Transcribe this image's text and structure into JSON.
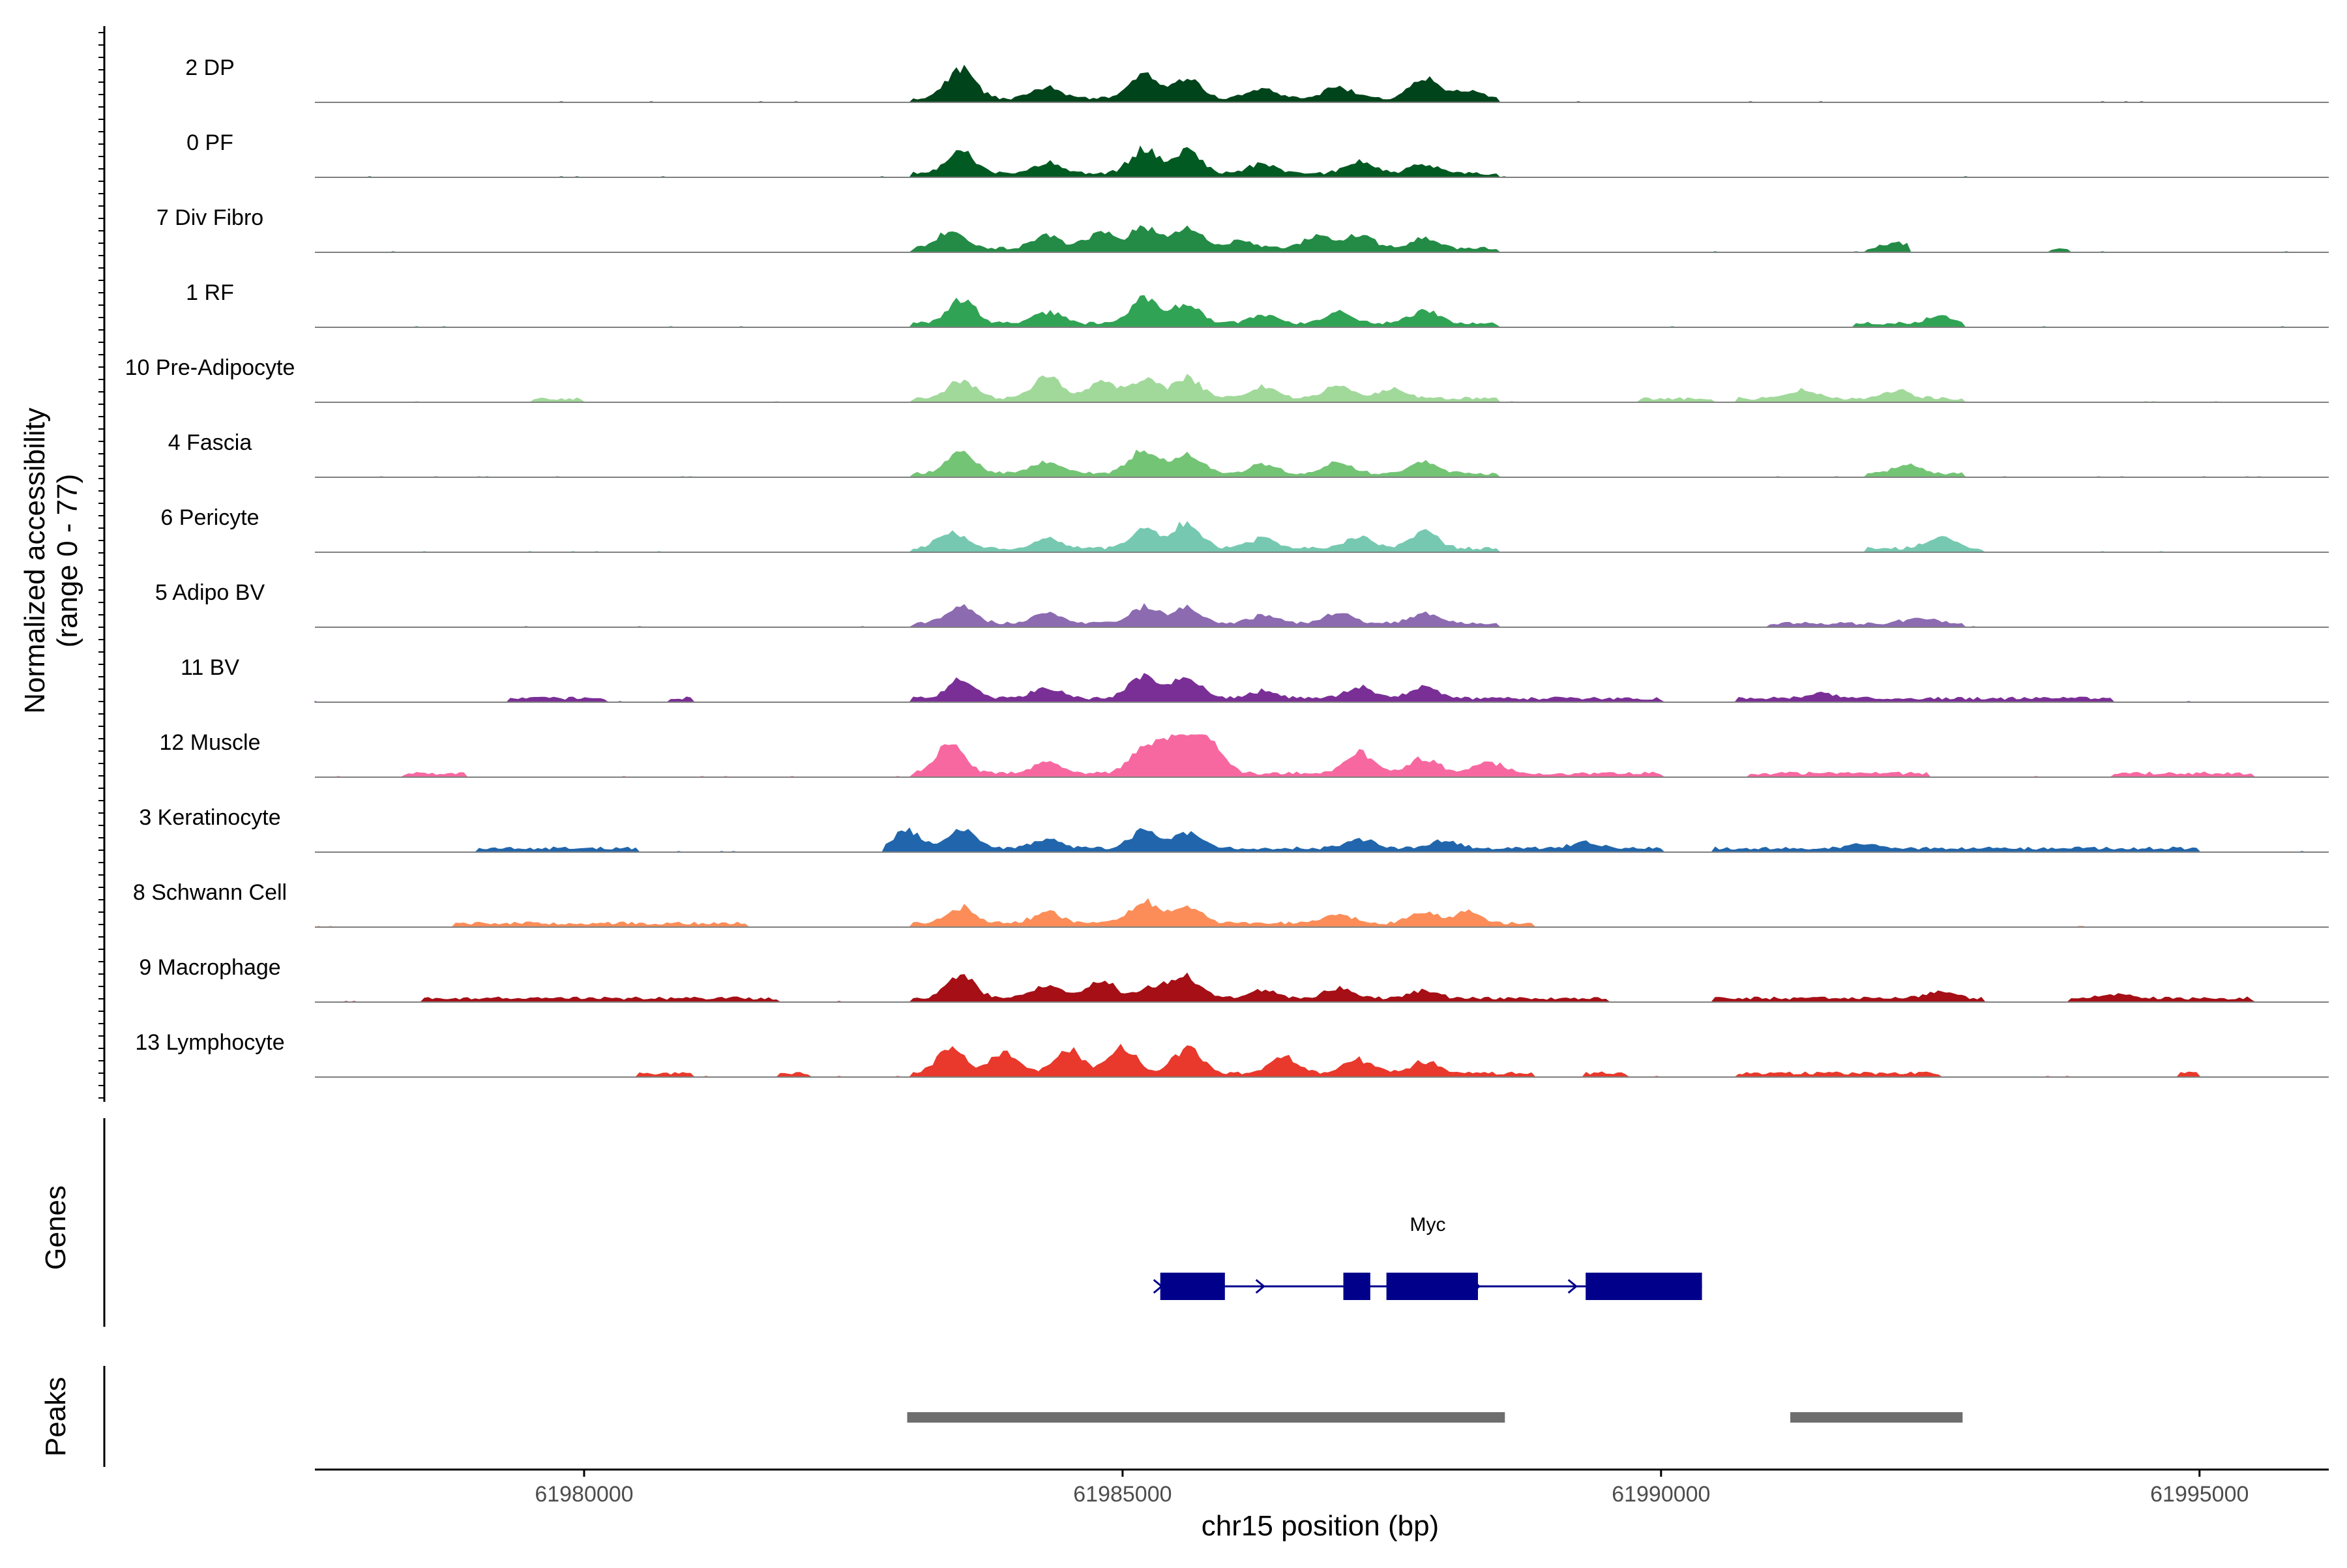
{
  "chart_data": {
    "type": "area",
    "title": "",
    "xlabel": "chr15 position (bp)",
    "ylabel": "Normalized accessibility",
    "ylabel_range": "(range 0 - 77)",
    "ylim": [
      0,
      77
    ],
    "xlim": [
      61977500,
      61996200
    ],
    "x_ticks": [
      61980000,
      61985000,
      61990000,
      61995000
    ],
    "x_tick_labels": [
      "61980000",
      "61985000",
      "61990000",
      "61995000"
    ],
    "tracks": [
      {
        "name": "2 DP",
        "color": "#00441b",
        "segments": [
          [
            61983050,
            61988500
          ]
        ],
        "peaks": [
          [
            61983500,
            0.75
          ],
          [
            61984300,
            0.3
          ],
          [
            61985200,
            0.62
          ],
          [
            61985600,
            0.52
          ],
          [
            61986300,
            0.25
          ],
          [
            61987000,
            0.32
          ],
          [
            61987800,
            0.52
          ],
          [
            61988200,
            0.2
          ]
        ]
      },
      {
        "name": "0 PF",
        "color": "#005a22",
        "segments": [
          [
            61983050,
            61988500
          ]
        ],
        "peaks": [
          [
            61983500,
            0.55
          ],
          [
            61984300,
            0.28
          ],
          [
            61985200,
            0.6
          ],
          [
            61985600,
            0.55
          ],
          [
            61986300,
            0.25
          ],
          [
            61987200,
            0.3
          ],
          [
            61987800,
            0.25
          ]
        ]
      },
      {
        "name": "7 Div Fibro",
        "color": "#238b45",
        "segments": [
          [
            61983050,
            61988500
          ],
          [
            61991900,
            61992300
          ],
          [
            61993600,
            61993800
          ]
        ],
        "peaks": [
          [
            61983400,
            0.45
          ],
          [
            61984300,
            0.35
          ],
          [
            61984800,
            0.4
          ],
          [
            61985200,
            0.55
          ],
          [
            61985600,
            0.52
          ],
          [
            61986100,
            0.2
          ],
          [
            61986800,
            0.3
          ],
          [
            61987200,
            0.35
          ],
          [
            61987800,
            0.25
          ],
          [
            61992200,
            0.15
          ]
        ]
      },
      {
        "name": "1 RF",
        "color": "#31a354",
        "segments": [
          [
            61983050,
            61988500
          ],
          [
            61991800,
            61992800
          ]
        ],
        "peaks": [
          [
            61983500,
            0.6
          ],
          [
            61984300,
            0.3
          ],
          [
            61985200,
            0.62
          ],
          [
            61985600,
            0.5
          ],
          [
            61986300,
            0.2
          ],
          [
            61987000,
            0.3
          ],
          [
            61987800,
            0.35
          ],
          [
            61992600,
            0.18
          ]
        ]
      },
      {
        "name": "10 Pre-Adipocyte",
        "color": "#a1d99b",
        "segments": [
          [
            61979500,
            61980000
          ],
          [
            61983050,
            61988500
          ],
          [
            61989800,
            61990500
          ],
          [
            61990700,
            61992800
          ]
        ],
        "peaks": [
          [
            61983500,
            0.45
          ],
          [
            61984300,
            0.55
          ],
          [
            61984800,
            0.4
          ],
          [
            61985200,
            0.5
          ],
          [
            61985600,
            0.52
          ],
          [
            61986300,
            0.3
          ],
          [
            61987000,
            0.3
          ],
          [
            61987500,
            0.25
          ],
          [
            61991300,
            0.2
          ],
          [
            61992200,
            0.2
          ]
        ]
      },
      {
        "name": "4 Fascia",
        "color": "#74c476",
        "segments": [
          [
            61983050,
            61988500
          ],
          [
            61991900,
            61992800
          ]
        ],
        "peaks": [
          [
            61983500,
            0.55
          ],
          [
            61984300,
            0.3
          ],
          [
            61985200,
            0.6
          ],
          [
            61985600,
            0.5
          ],
          [
            61986300,
            0.22
          ],
          [
            61987000,
            0.28
          ],
          [
            61987800,
            0.3
          ],
          [
            61992300,
            0.2
          ]
        ]
      },
      {
        "name": "6 Pericyte",
        "color": "#76c9b0",
        "segments": [
          [
            61983050,
            61988500
          ],
          [
            61991900,
            61993000
          ]
        ],
        "peaks": [
          [
            61983400,
            0.4
          ],
          [
            61984300,
            0.25
          ],
          [
            61985200,
            0.5
          ],
          [
            61985600,
            0.65
          ],
          [
            61986300,
            0.25
          ],
          [
            61987200,
            0.28
          ],
          [
            61987800,
            0.42
          ],
          [
            61992600,
            0.3
          ]
        ]
      },
      {
        "name": "5 Adipo BV",
        "color": "#8c6bb1",
        "segments": [
          [
            61983050,
            61988500
          ],
          [
            61991000,
            61992800
          ]
        ],
        "peaks": [
          [
            61983500,
            0.45
          ],
          [
            61984300,
            0.28
          ],
          [
            61985200,
            0.42
          ],
          [
            61985600,
            0.38
          ],
          [
            61986300,
            0.2
          ],
          [
            61987000,
            0.28
          ],
          [
            61987800,
            0.25
          ],
          [
            61992400,
            0.15
          ]
        ]
      },
      {
        "name": "11 BV",
        "color": "#7a2f96",
        "segments": [
          [
            61979300,
            61980200
          ],
          [
            61980800,
            61981000
          ],
          [
            61983050,
            61990000
          ],
          [
            61990700,
            61994200
          ]
        ],
        "peaks": [
          [
            61983500,
            0.45
          ],
          [
            61984300,
            0.3
          ],
          [
            61985200,
            0.62
          ],
          [
            61985600,
            0.55
          ],
          [
            61986300,
            0.2
          ],
          [
            61987200,
            0.28
          ],
          [
            61987800,
            0.28
          ],
          [
            61991500,
            0.15
          ]
        ]
      },
      {
        "name": "12 Muscle",
        "color": "#f768a1",
        "segments": [
          [
            61978300,
            61978900
          ],
          [
            61983050,
            61990000
          ],
          [
            61990800,
            61992500
          ],
          [
            61994200,
            61995500
          ]
        ],
        "peaks": [
          [
            61983400,
            0.75
          ],
          [
            61984300,
            0.3
          ],
          [
            61985200,
            0.65
          ],
          [
            61985500,
            1.0
          ],
          [
            61985800,
            0.85
          ],
          [
            61987200,
            0.55
          ],
          [
            61987800,
            0.4
          ],
          [
            61988400,
            0.3
          ]
        ]
      },
      {
        "name": "3 Keratinocyte",
        "color": "#2166ac",
        "segments": [
          [
            61979000,
            61980500
          ],
          [
            61982800,
            61990000
          ],
          [
            61990500,
            61995000
          ]
        ],
        "peaks": [
          [
            61983000,
            0.45
          ],
          [
            61983500,
            0.5
          ],
          [
            61984300,
            0.25
          ],
          [
            61985200,
            0.45
          ],
          [
            61985600,
            0.4
          ],
          [
            61987200,
            0.25
          ],
          [
            61988000,
            0.2
          ],
          [
            61989300,
            0.15
          ],
          [
            61991900,
            0.12
          ]
        ]
      },
      {
        "name": "8 Schwann Cell",
        "color": "#fc8d59",
        "segments": [
          [
            61978800,
            61981500
          ],
          [
            61983050,
            61988800
          ]
        ],
        "peaks": [
          [
            61983500,
            0.4
          ],
          [
            61984300,
            0.28
          ],
          [
            61985200,
            0.55
          ],
          [
            61985600,
            0.45
          ],
          [
            61987000,
            0.25
          ],
          [
            61987800,
            0.3
          ],
          [
            61988200,
            0.3
          ]
        ]
      },
      {
        "name": "9 Macrophage",
        "color": "#a50f15",
        "segments": [
          [
            61978500,
            61981800
          ],
          [
            61983050,
            61989500
          ],
          [
            61990500,
            61993000
          ],
          [
            61993800,
            61995500
          ]
        ],
        "peaks": [
          [
            61983500,
            0.6
          ],
          [
            61984300,
            0.35
          ],
          [
            61984800,
            0.45
          ],
          [
            61985300,
            0.3
          ],
          [
            61985600,
            0.55
          ],
          [
            61986300,
            0.2
          ],
          [
            61987000,
            0.25
          ],
          [
            61987800,
            0.2
          ],
          [
            61992600,
            0.15
          ],
          [
            61994200,
            0.12
          ]
        ]
      },
      {
        "name": "13 Lymphocyte",
        "color": "#e8392c",
        "segments": [
          [
            61980500,
            61981000
          ],
          [
            61981800,
            61982100
          ],
          [
            61983050,
            61988800
          ],
          [
            61989300,
            61989700
          ],
          [
            61990700,
            61992600
          ],
          [
            61994800,
            61995000
          ]
        ],
        "peaks": [
          [
            61983400,
            0.65
          ],
          [
            61983900,
            0.55
          ],
          [
            61984500,
            0.6
          ],
          [
            61985000,
            0.65
          ],
          [
            61985600,
            0.62
          ],
          [
            61986500,
            0.4
          ],
          [
            61987200,
            0.35
          ],
          [
            61987800,
            0.3
          ]
        ]
      }
    ],
    "genes_track_label": "Genes",
    "gene": {
      "name": "Myc",
      "strand": "+",
      "start": 61985350,
      "end": 61990380,
      "exons": [
        [
          61985350,
          61985950
        ],
        [
          61987050,
          61987300
        ],
        [
          61987450,
          61988300
        ],
        [
          61989300,
          61990380
        ]
      ],
      "color": "#00008b"
    },
    "peaks_track_label": "Peaks",
    "peak_regions": [
      [
        61983000,
        61988550
      ],
      [
        61991200,
        61992800
      ]
    ],
    "peak_color": "#6e6e6e"
  }
}
